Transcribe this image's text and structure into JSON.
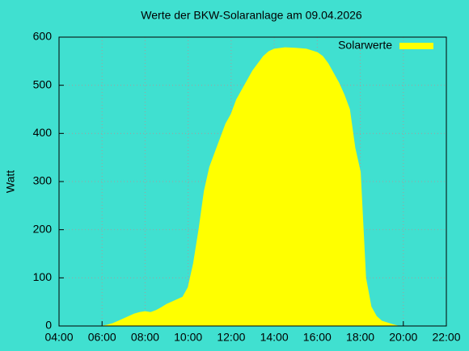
{
  "chart_data": {
    "type": "area",
    "title": "Werte der BKW-Solaranlage am 09.04.2026",
    "y_label": "Watt",
    "x": [
      "06:00",
      "06:15",
      "06:30",
      "06:45",
      "07:00",
      "07:15",
      "07:30",
      "07:45",
      "08:00",
      "08:15",
      "08:30",
      "08:45",
      "09:00",
      "09:15",
      "09:30",
      "09:45",
      "10:00",
      "10:15",
      "10:30",
      "10:45",
      "11:00",
      "11:15",
      "11:30",
      "11:45",
      "12:00",
      "12:15",
      "12:30",
      "12:45",
      "13:00",
      "13:15",
      "13:30",
      "13:45",
      "14:00",
      "14:30",
      "15:00",
      "15:30",
      "16:00",
      "16:15",
      "16:30",
      "16:45",
      "17:00",
      "17:15",
      "17:30",
      "17:45",
      "18:00",
      "18:15",
      "18:30",
      "18:45",
      "19:00",
      "19:30",
      "19:45"
    ],
    "series": [
      {
        "name": "Solarwerte",
        "color": "#ffff00",
        "values": [
          0,
          2,
          5,
          10,
          15,
          20,
          25,
          28,
          30,
          28,
          32,
          38,
          45,
          50,
          55,
          60,
          80,
          130,
          200,
          280,
          330,
          360,
          390,
          420,
          440,
          470,
          490,
          510,
          530,
          545,
          560,
          570,
          575,
          578,
          577,
          575,
          568,
          560,
          545,
          525,
          505,
          480,
          450,
          370,
          320,
          100,
          40,
          20,
          10,
          3,
          0
        ]
      }
    ],
    "xlim": [
      "04:00",
      "22:00"
    ],
    "xticks": [
      "04:00",
      "06:00",
      "08:00",
      "10:00",
      "12:00",
      "14:00",
      "16:00",
      "18:00",
      "20:00",
      "22:00"
    ],
    "ylim": [
      0,
      600
    ],
    "yticks": [
      0,
      100,
      200,
      300,
      400,
      500,
      600
    ],
    "grid": true,
    "legend": "top-right",
    "background": "#40e0d0"
  }
}
